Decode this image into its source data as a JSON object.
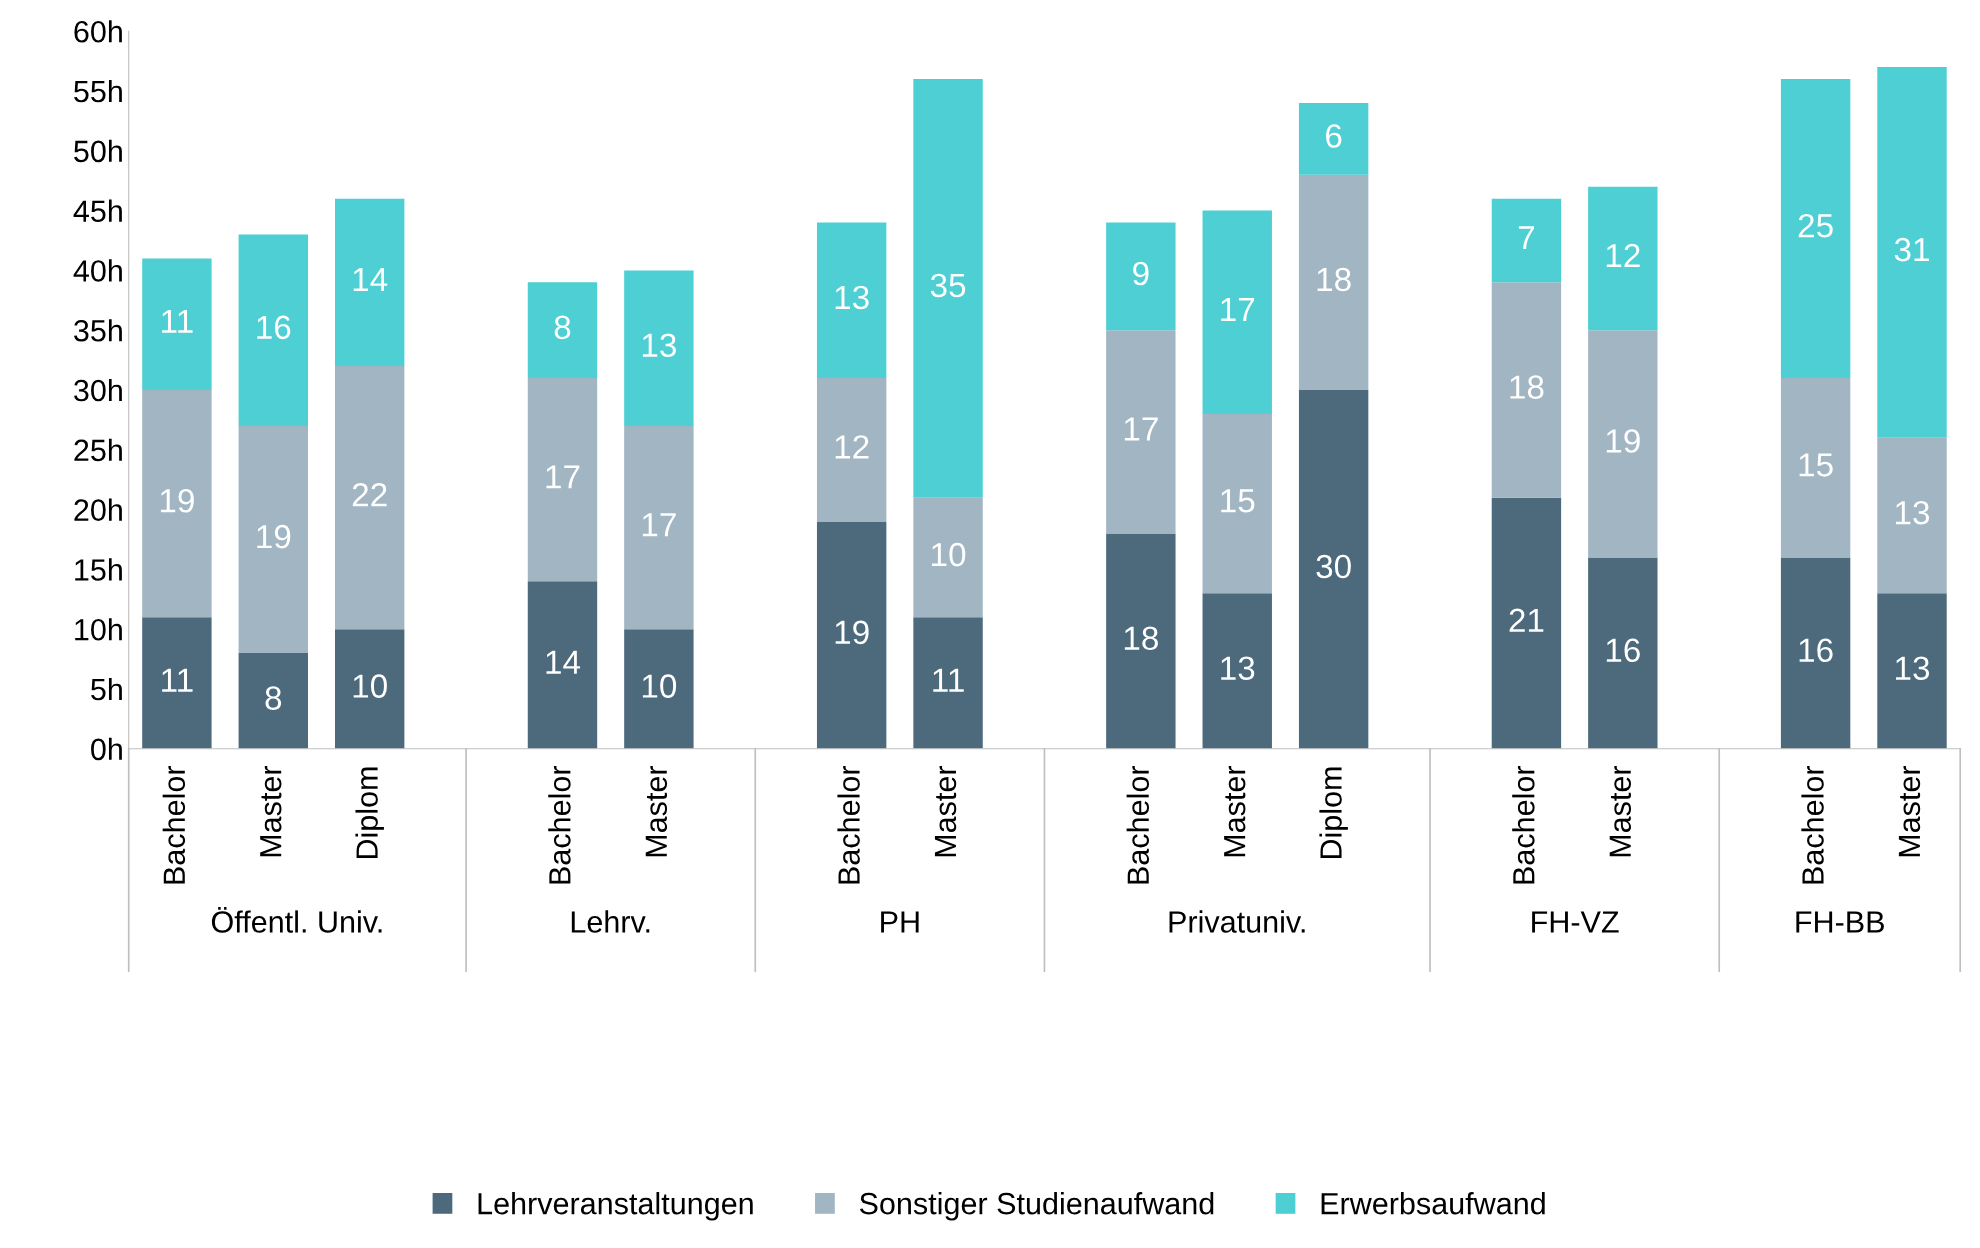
{
  "chart_data": {
    "type": "bar",
    "stacked": true,
    "data_labels": true,
    "legend": "bottom",
    "grid": false,
    "categories": [
      "Bachelor",
      "Master",
      "Diplom",
      null,
      "Bachelor",
      "Master",
      null,
      "Bachelor",
      "Master",
      null,
      "Bachelor",
      "Master",
      "Diplom",
      null,
      "Bachelor",
      "Master",
      null,
      "Bachelor",
      "Master"
    ],
    "annotations": [
      "Öffentl. Univ.",
      "Lehrv.",
      "PH",
      "Privatuniv.",
      "FH-VZ",
      "FH-BB"
    ],
    "ylim": [
      0,
      60
    ],
    "yticks": [
      {
        "value": 0,
        "label": "0h"
      },
      {
        "value": 5,
        "label": "5h"
      },
      {
        "value": 10,
        "label": "10h"
      },
      {
        "value": 15,
        "label": "15h"
      },
      {
        "value": 20,
        "label": "20h"
      },
      {
        "value": 25,
        "label": "25h"
      },
      {
        "value": 30,
        "label": "30h"
      },
      {
        "value": 35,
        "label": "35h"
      },
      {
        "value": 40,
        "label": "40h"
      },
      {
        "value": 45,
        "label": "45h"
      },
      {
        "value": 50,
        "label": "50h"
      },
      {
        "value": 55,
        "label": "55h"
      },
      {
        "value": 60,
        "label": "60h"
      }
    ],
    "series": [
      {
        "name": "Lehrveranstaltungen",
        "color": "#4d697c",
        "values": [
          11,
          8,
          10,
          null,
          14,
          10,
          null,
          19,
          11,
          null,
          18,
          13,
          30,
          null,
          21,
          16,
          null,
          16,
          13
        ]
      },
      {
        "name": "Sonstiger Studienaufwand",
        "color": "#a1b5c3",
        "values": [
          19,
          19,
          22,
          null,
          17,
          17,
          null,
          12,
          10,
          null,
          17,
          15,
          18,
          null,
          18,
          19,
          null,
          15,
          13
        ]
      },
      {
        "name": "Erwerbsaufwand",
        "color": "#4dcfd3",
        "values": [
          11,
          16,
          14,
          null,
          8,
          13,
          null,
          13,
          35,
          null,
          9,
          17,
          6,
          null,
          7,
          12,
          null,
          25,
          31
        ]
      }
    ]
  }
}
